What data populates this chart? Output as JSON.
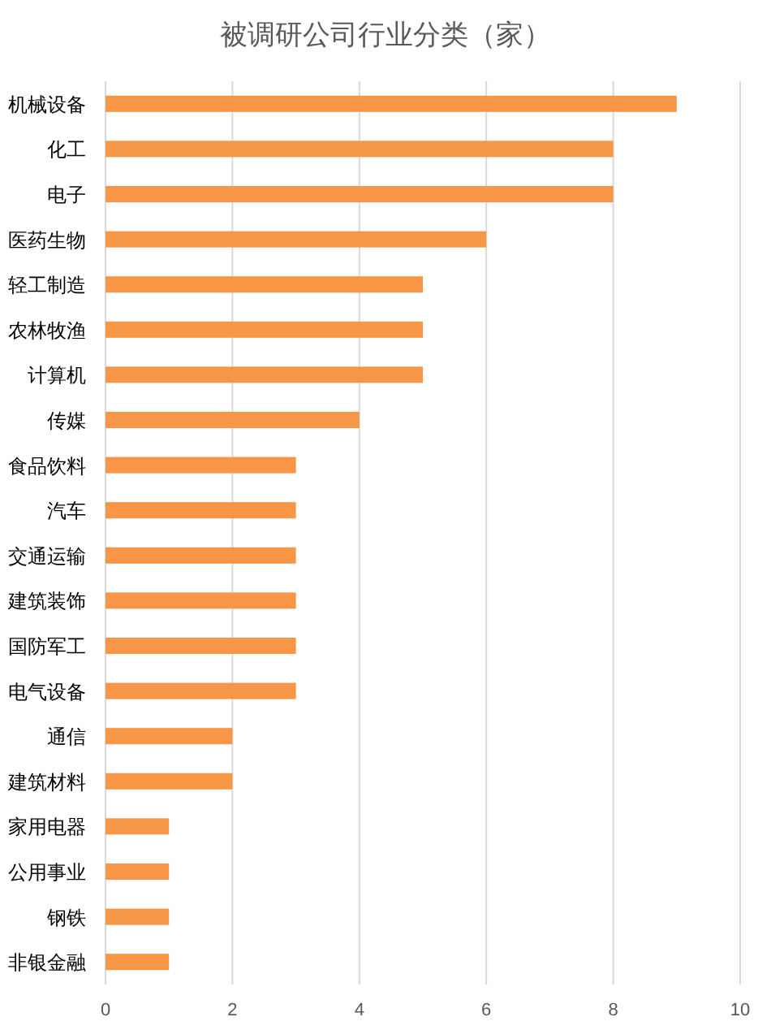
{
  "chart_data": {
    "type": "bar",
    "orientation": "horizontal",
    "title": "被调研公司行业分类（家）",
    "categories": [
      "机械设备",
      "化工",
      "电子",
      "医药生物",
      "轻工制造",
      "农林牧渔",
      "计算机",
      "传媒",
      "食品饮料",
      "汽车",
      "交通运输",
      "建筑装饰",
      "国防军工",
      "电气设备",
      "通信",
      "建筑材料",
      "家用电器",
      "公用事业",
      "钢铁",
      "非银金融"
    ],
    "values": [
      9,
      8,
      8,
      6,
      5,
      5,
      5,
      4,
      3,
      3,
      3,
      3,
      3,
      3,
      2,
      2,
      1,
      1,
      1,
      1
    ],
    "color": "#f79646",
    "xlim": [
      0,
      10
    ],
    "xticks": [
      0,
      2,
      4,
      6,
      8,
      10
    ],
    "grid": "x"
  }
}
